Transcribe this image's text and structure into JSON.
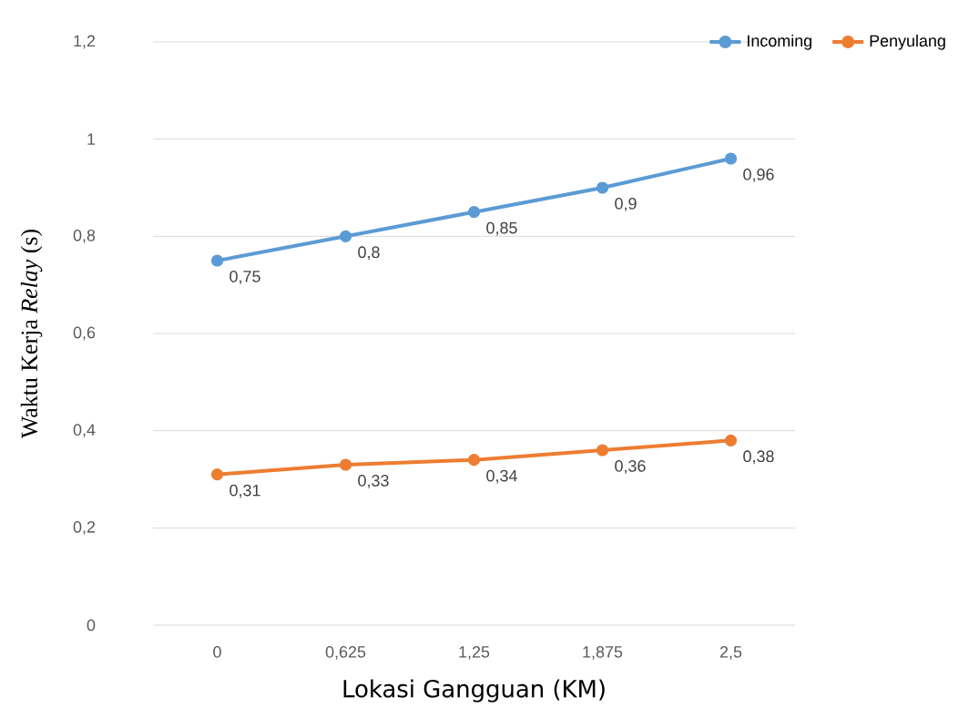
{
  "chart_data": {
    "type": "line",
    "xlabel": "Lokasi Gangguan (KM)",
    "ylabel": "Waktu Kerja *Relay* (s)",
    "categories": [
      "0",
      "0,625",
      "1,25",
      "1,875",
      "2,5"
    ],
    "series": [
      {
        "name": "Incoming",
        "color": "#5b9bd5",
        "values": [
          0.75,
          0.8,
          0.85,
          0.9,
          0.96
        ],
        "value_labels": [
          "0,75",
          "0,8",
          "0,85",
          "0,9",
          "0,96"
        ]
      },
      {
        "name": "Penyulang",
        "color": "#ed7d31",
        "values": [
          0.31,
          0.33,
          0.34,
          0.36,
          0.38
        ],
        "value_labels": [
          "0,31",
          "0,33",
          "0,34",
          "0,36",
          "0,38"
        ]
      }
    ],
    "ylim": [
      0,
      1.2
    ],
    "yticks": [
      {
        "value": 0,
        "label": "0"
      },
      {
        "value": 0.2,
        "label": "0,2"
      },
      {
        "value": 0.4,
        "label": "0,4"
      },
      {
        "value": 0.6,
        "label": "0,6"
      },
      {
        "value": 0.8,
        "label": "0,8"
      },
      {
        "value": 1,
        "label": "1"
      },
      {
        "value": 1.2,
        "label": "1,2"
      }
    ],
    "grid": "y",
    "legend": "top right",
    "marker": "circle",
    "line_style": "solid"
  }
}
